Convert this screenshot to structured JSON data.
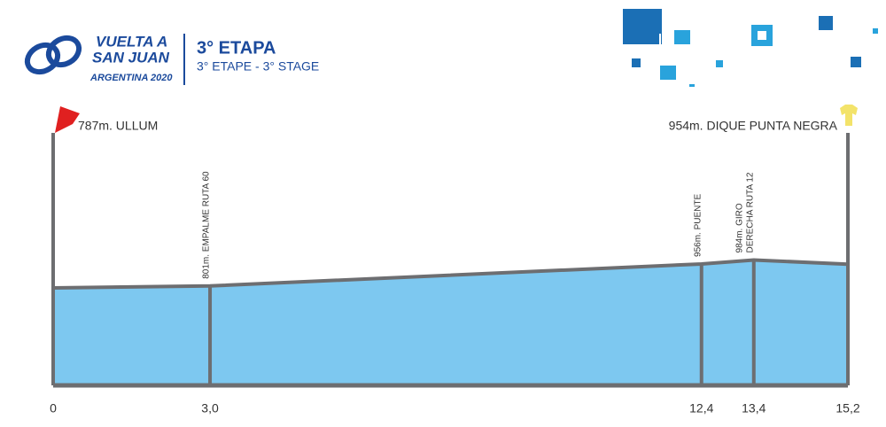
{
  "chart_data": {
    "type": "area",
    "logo_text": [
      "VUELTA A",
      "SAN JUAN",
      "ARGENTINA 2020"
    ],
    "title": "3° ETAPA",
    "subtitle": "3° ETAPE - 3° STAGE",
    "x": [
      0,
      3.0,
      12.4,
      13.4,
      15.2
    ],
    "values": [
      787,
      801,
      956,
      984,
      954
    ],
    "value_labels": [
      "787m. ULLUM",
      "801m. EMPALME RUTA 60",
      "956m. PUENTE",
      [
        "984m. GIRO",
        "DERECHA RUTA 12"
      ],
      "954m. DIQUE PUNTA NEGRA"
    ],
    "color": "#7dc8f0",
    "xlim": [
      0,
      15.2
    ],
    "xticks": [
      {
        "value": 0,
        "label": "0"
      },
      {
        "value": 3.0,
        "label": "3,0"
      },
      {
        "value": 12.4,
        "label": "12,4"
      },
      {
        "value": 13.4,
        "label": "13,4"
      },
      {
        "value": 15.2,
        "label": "15,2"
      }
    ],
    "ylim": [
      100,
      1880
    ]
  }
}
